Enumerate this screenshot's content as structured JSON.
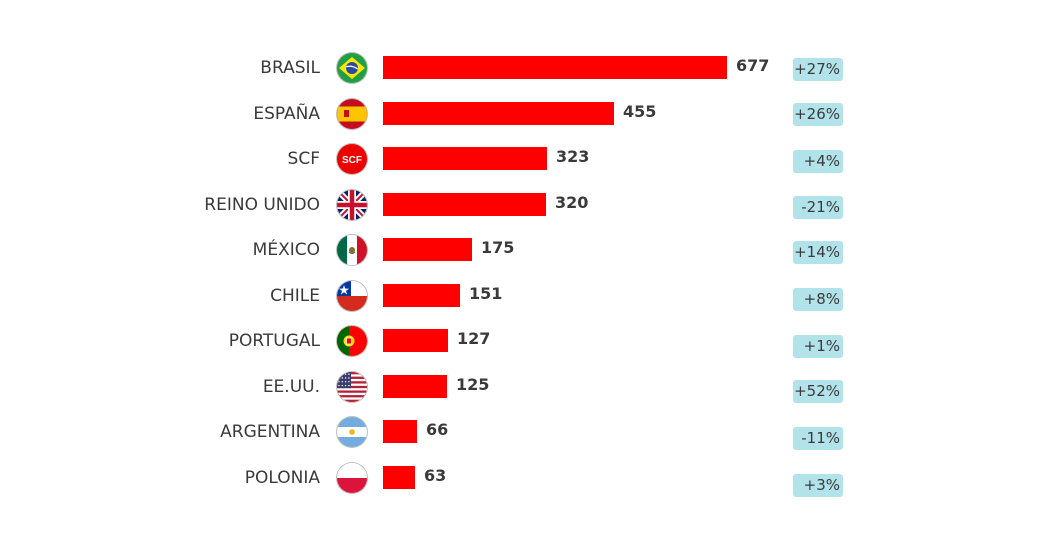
{
  "chart_data": {
    "type": "bar",
    "orientation": "horizontal",
    "categories": [
      "BRASIL",
      "ESPAÑA",
      "SCF",
      "REINO UNIDO",
      "MÉXICO",
      "CHILE",
      "PORTUGAL",
      "EE.UU.",
      "ARGENTINA",
      "POLONIA"
    ],
    "values": [
      677,
      455,
      323,
      320,
      175,
      151,
      127,
      125,
      66,
      63
    ],
    "value_labels": [
      "677",
      "455",
      "323",
      "320",
      "175",
      "151",
      "127",
      "125",
      "66",
      "63"
    ],
    "changes": [
      "+27%",
      "+26%",
      "+4%",
      "-21%",
      "+14%",
      "+8%",
      "+1%",
      "+52%",
      "-11%",
      "+3%"
    ],
    "flag_icons": [
      "brazil-flag-icon",
      "spain-flag-icon",
      "scf-logo-icon",
      "uk-flag-icon",
      "mexico-flag-icon",
      "chile-flag-icon",
      "portugal-flag-icon",
      "usa-flag-icon",
      "argentina-flag-icon",
      "poland-flag-icon"
    ],
    "scf_logo_text": "SCF",
    "bar_color": "#ff0000",
    "change_badge_color": "#b2e3ea",
    "xlim": [
      0,
      677
    ],
    "grid": false,
    "legend": "none"
  }
}
